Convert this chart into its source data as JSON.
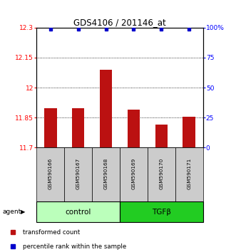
{
  "title": "GDS4106 / 201146_at",
  "categories": [
    "GSM590166",
    "GSM590167",
    "GSM590168",
    "GSM590169",
    "GSM590170",
    "GSM590171"
  ],
  "bar_values": [
    11.895,
    11.895,
    12.09,
    11.89,
    11.815,
    11.855
  ],
  "percentile_values": [
    99,
    99,
    99,
    99,
    99,
    99
  ],
  "ylim_left": [
    11.7,
    12.3
  ],
  "ylim_right": [
    0,
    100
  ],
  "yticks_left": [
    11.7,
    11.85,
    12.0,
    12.15,
    12.3
  ],
  "yticks_right": [
    0,
    25,
    50,
    75,
    100
  ],
  "ytick_labels_left": [
    "11.7",
    "11.85",
    "12",
    "12.15",
    "12.3"
  ],
  "ytick_labels_right": [
    "0",
    "25",
    "50",
    "75",
    "100%"
  ],
  "bar_color": "#bb1111",
  "percentile_color": "#0000cc",
  "groups": [
    {
      "label": "control",
      "indices": [
        0,
        1,
        2
      ],
      "color": "#bbffbb"
    },
    {
      "label": "TGFβ",
      "indices": [
        3,
        4,
        5
      ],
      "color": "#22cc22"
    }
  ],
  "agent_label": "agent",
  "legend": [
    {
      "label": "transformed count",
      "color": "#bb1111"
    },
    {
      "label": "percentile rank within the sample",
      "color": "#0000cc"
    }
  ],
  "grid_yticks": [
    11.85,
    12.0,
    12.15
  ],
  "bar_bottom": 11.7
}
